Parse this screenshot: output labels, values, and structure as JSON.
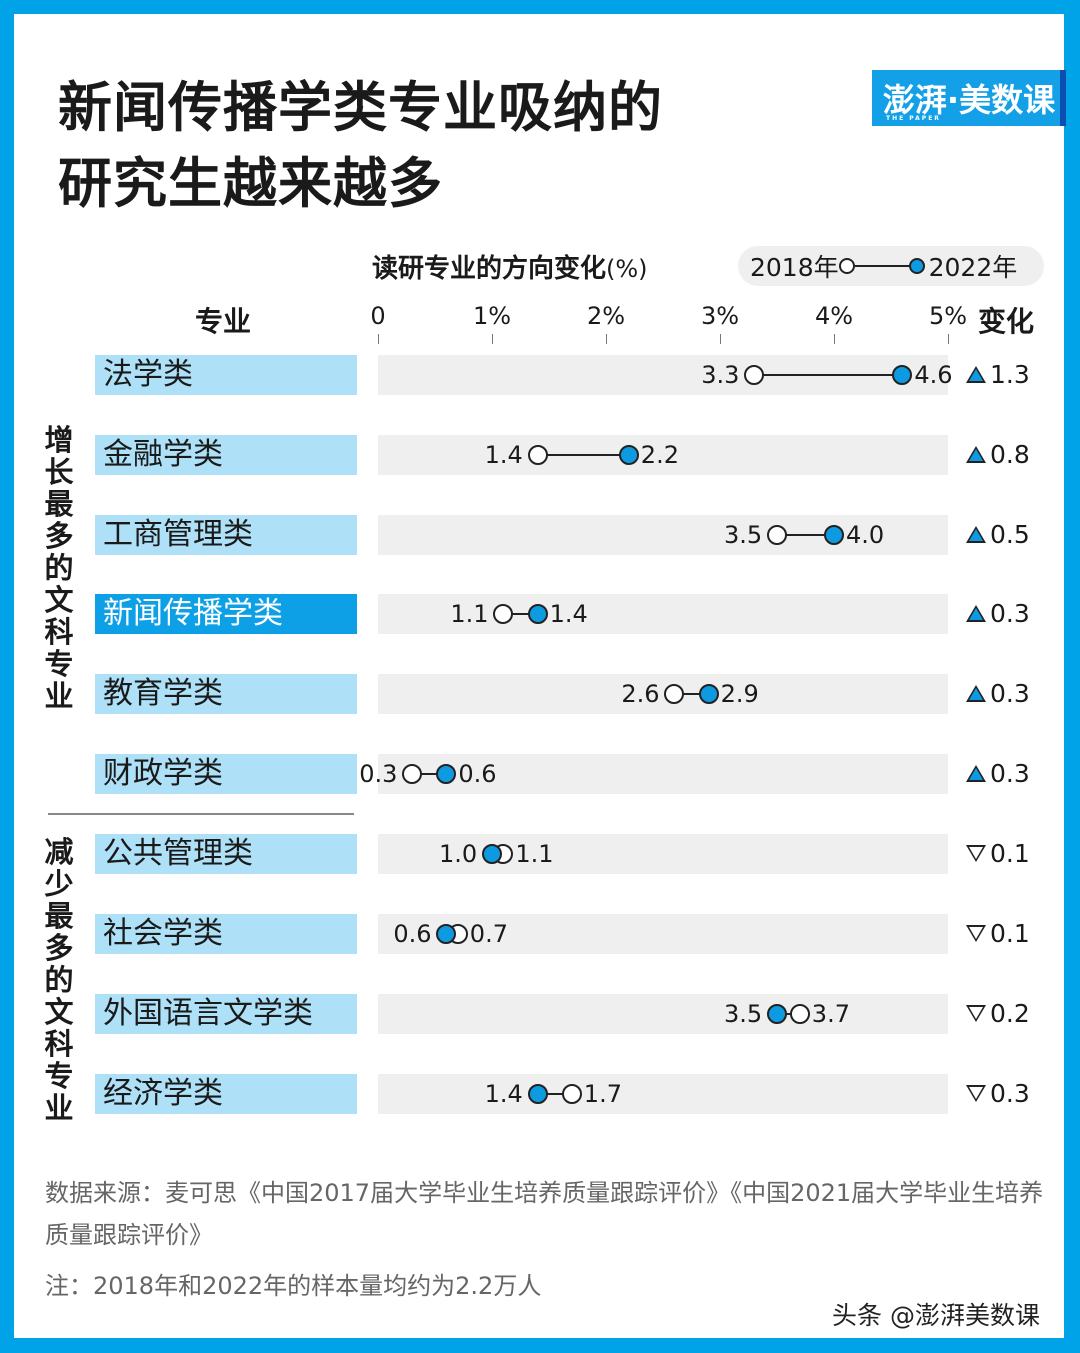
{
  "title": {
    "line1": "新闻传播学类专业吸纳的",
    "line2": "研究生越来越多"
  },
  "logo": {
    "text": "澎湃·美数课",
    "sub": "THE PAPER"
  },
  "subtitle": {
    "main": "读研专业的方向变化",
    "unit": "(%)"
  },
  "legend": {
    "start": "2018年",
    "end": "2022年"
  },
  "headers": {
    "major": "专业",
    "change": "变化"
  },
  "groups": {
    "increase": "增长最多的文科专业",
    "decrease": "减少最多的文科专业"
  },
  "colors": {
    "accent": "#0d9ae0",
    "frame": "#00a3e8",
    "label_bg": "#aee1f8",
    "highlight_bg": "#0ea0e6",
    "track": "#efefef"
  },
  "chart_data": {
    "type": "dumbbell",
    "title": "新闻传播学类专业吸纳的研究生越来越多",
    "subtitle": "读研专业的方向变化(%)",
    "xlabel": "",
    "ylabel": "专业",
    "xlim": [
      0,
      5
    ],
    "x_ticks": [
      "0",
      "1%",
      "2%",
      "3%",
      "4%",
      "5%"
    ],
    "legend": [
      "2018年",
      "2022年"
    ],
    "legend_position": "top-right",
    "grid": false,
    "categories": [
      "法学类",
      "金融学类",
      "工商管理类",
      "新闻传播学类",
      "教育学类",
      "财政学类",
      "公共管理类",
      "社会学类",
      "外国语言文学类",
      "经济学类"
    ],
    "series": [
      {
        "name": "2018年",
        "values": [
          3.3,
          1.4,
          3.5,
          1.1,
          2.6,
          0.3,
          1.1,
          0.7,
          3.7,
          1.7
        ]
      },
      {
        "name": "2022年",
        "values": [
          4.6,
          2.2,
          4.0,
          1.4,
          2.9,
          0.6,
          1.0,
          0.6,
          3.5,
          1.4
        ]
      }
    ],
    "change": [
      "▲1.3",
      "▲0.8",
      "▲0.5",
      "▲0.3",
      "▲0.3",
      "▲0.3",
      "▽0.1",
      "▽0.1",
      "▽0.2",
      "▽0.3"
    ],
    "groups": [
      {
        "name": "增长最多的文科专业",
        "categories": [
          "法学类",
          "金融学类",
          "工商管理类",
          "新闻传播学类",
          "教育学类",
          "财政学类"
        ]
      },
      {
        "name": "减少最多的文科专业",
        "categories": [
          "公共管理类",
          "社会学类",
          "外国语言文学类",
          "经济学类"
        ]
      }
    ],
    "highlight": "新闻传播学类"
  },
  "rows": [
    {
      "label": "法学类",
      "v2018": 3.3,
      "v2022": 4.6,
      "t2018": "3.3",
      "t2022": "4.6",
      "change": "1.3",
      "dir": "up"
    },
    {
      "label": "金融学类",
      "v2018": 1.4,
      "v2022": 2.2,
      "t2018": "1.4",
      "t2022": "2.2",
      "change": "0.8",
      "dir": "up"
    },
    {
      "label": "工商管理类",
      "v2018": 3.5,
      "v2022": 4.0,
      "t2018": "3.5",
      "t2022": "4.0",
      "change": "0.5",
      "dir": "up"
    },
    {
      "label": "新闻传播学类",
      "v2018": 1.1,
      "v2022": 1.4,
      "t2018": "1.1",
      "t2022": "1.4",
      "change": "0.3",
      "dir": "up",
      "highlight": true
    },
    {
      "label": "教育学类",
      "v2018": 2.6,
      "v2022": 2.9,
      "t2018": "2.6",
      "t2022": "2.9",
      "change": "0.3",
      "dir": "up"
    },
    {
      "label": "财政学类",
      "v2018": 0.3,
      "v2022": 0.6,
      "t2018": "0.3",
      "t2022": "0.6",
      "change": "0.3",
      "dir": "up"
    },
    {
      "label": "公共管理类",
      "v2018": 1.1,
      "v2022": 1.0,
      "t2018": "1.1",
      "t2022": "1.0",
      "change": "0.1",
      "dir": "down"
    },
    {
      "label": "社会学类",
      "v2018": 0.7,
      "v2022": 0.6,
      "t2018": "0.7",
      "t2022": "0.6",
      "change": "0.1",
      "dir": "down"
    },
    {
      "label": "外国语言文学类",
      "v2018": 3.7,
      "v2022": 3.5,
      "t2018": "3.7",
      "t2022": "3.5",
      "change": "0.2",
      "dir": "down"
    },
    {
      "label": "经济学类",
      "v2018": 1.7,
      "v2022": 1.4,
      "t2018": "1.7",
      "t2022": "1.4",
      "change": "0.3",
      "dir": "down"
    }
  ],
  "footer": {
    "source": "数据来源：麦可思《中国2017届大学毕业生培养质量跟踪评价》《中国2021届大学毕业生培养质量跟踪评价》",
    "note": "注：2018年和2022年的样本量均约为2.2万人",
    "watermark": "头条 @澎湃美数课"
  }
}
